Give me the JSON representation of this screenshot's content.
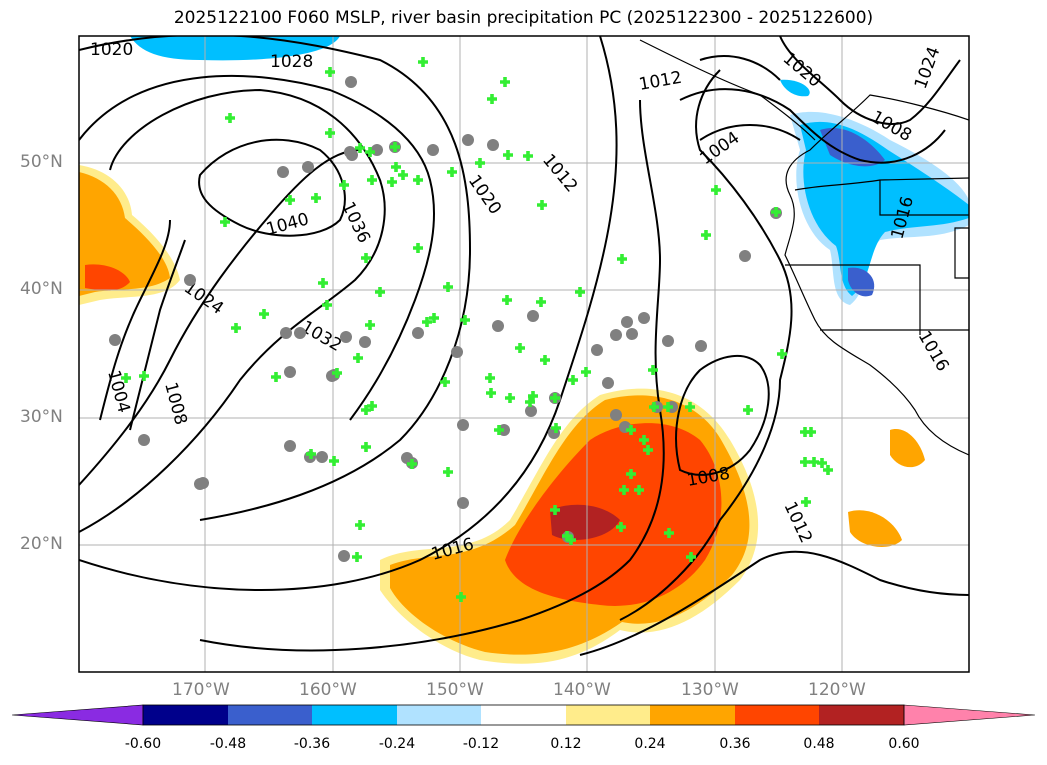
{
  "title": "2025122100 F060 MSLP, river basin precipitation PC (2025122300 - 2025122600)",
  "lat_labels": [
    "50°N",
    "40°N",
    "30°N",
    "20°N"
  ],
  "lon_labels": [
    "170°W",
    "160°W",
    "150°W",
    "140°W",
    "130°W",
    "120°W"
  ],
  "contour_labels": [
    "1020",
    "1028",
    "1036",
    "1040",
    "1024",
    "1032",
    "1004",
    "1008",
    "1016",
    "1020",
    "1012",
    "1008",
    "1016",
    "1012",
    "1016",
    "1020",
    "1008",
    "1004",
    "1012",
    "1024"
  ],
  "colorbar": {
    "ticks": [
      "-0.60",
      "-0.48",
      "-0.36",
      "-0.24",
      "-0.12",
      "0.12",
      "0.24",
      "0.36",
      "0.48",
      "0.60"
    ],
    "colors": [
      "#8a2be2",
      "#00008b",
      "#3a5fcd",
      "#00bfff",
      "#b0e2ff",
      "#ffffff",
      "#ffec8b",
      "#ffa500",
      "#ff4500",
      "#b22222",
      "#ff82ab"
    ]
  },
  "legend_markers": {
    "cross_color": "#33ee33",
    "circle_color": "#808080"
  }
}
